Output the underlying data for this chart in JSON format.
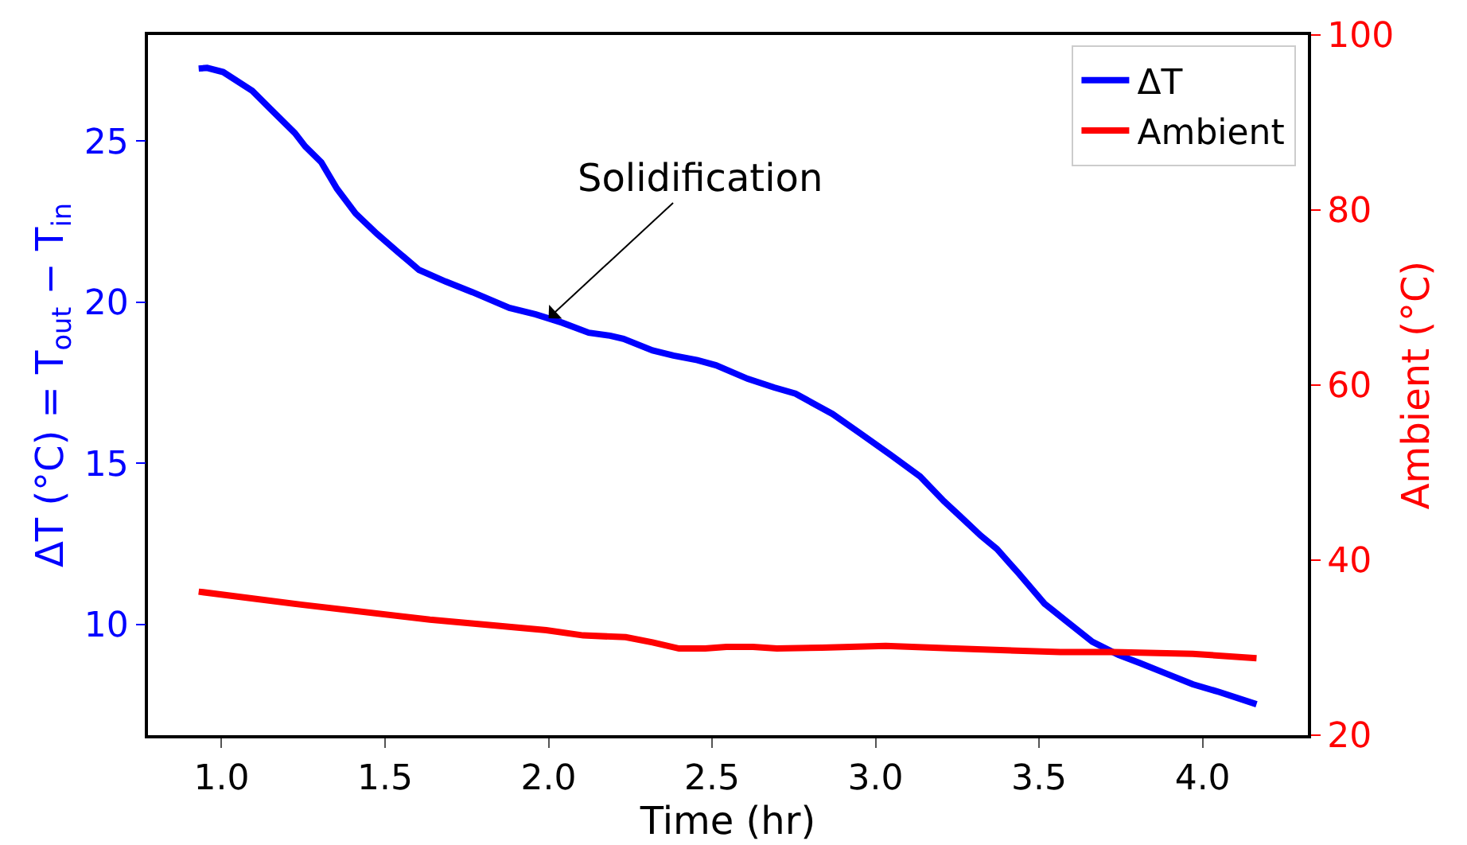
{
  "chart_data": {
    "type": "line",
    "xlabel": "Time (hr)",
    "ylabel": "ΔT (°C) = T$_{out}$ − T$_{in}$",
    "y2label": "Ambient (°C)",
    "xlim": [
      0.775,
      4.322
    ],
    "xticks": [
      {
        "value": 1,
        "label": "1.0"
      },
      1.5,
      {
        "value": 2,
        "label": "2.0"
      },
      2.5,
      {
        "value": 3,
        "label": "3.0"
      },
      3.5,
      {
        "value": 4,
        "label": "4.0"
      }
    ],
    "ylim": [
      6.56,
      28.29
    ],
    "yticks": [
      10,
      15,
      20,
      25
    ],
    "y2lim": [
      20,
      100
    ],
    "y2ticks": [
      20,
      40,
      60,
      80,
      100
    ],
    "grid": false,
    "legend": "top right",
    "line_style": "solid",
    "marker": "none",
    "annotations": [
      {
        "text": "Solidification",
        "x": 2.0,
        "y": 19.5
      }
    ],
    "series": [
      {
        "name": "ΔT",
        "color": "#0000ff",
        "x": [
          0.93,
          0.956,
          1.005,
          1.094,
          1.15,
          1.224,
          1.256,
          1.305,
          1.353,
          1.41,
          1.475,
          1.54,
          1.604,
          1.685,
          1.767,
          1.88,
          1.961,
          2.042,
          2.123,
          2.188,
          2.229,
          2.318,
          2.382,
          2.455,
          2.512,
          2.609,
          2.69,
          2.755,
          2.868,
          2.95,
          3.047,
          3.136,
          3.209,
          3.257,
          3.322,
          3.371,
          3.436,
          3.517,
          3.581,
          3.663,
          3.743,
          3.808,
          3.889,
          3.97,
          4.051,
          4.165
        ],
        "values": [
          27.25,
          27.27,
          27.14,
          26.56,
          25.99,
          25.25,
          24.83,
          24.34,
          23.52,
          22.75,
          22.12,
          21.55,
          21.0,
          20.64,
          20.31,
          19.82,
          19.62,
          19.36,
          19.05,
          18.96,
          18.86,
          18.5,
          18.34,
          18.2,
          18.04,
          17.62,
          17.35,
          17.16,
          16.53,
          15.95,
          15.25,
          14.59,
          13.82,
          13.37,
          12.75,
          12.34,
          11.6,
          10.64,
          10.12,
          9.46,
          9.05,
          8.8,
          8.47,
          8.14,
          7.9,
          7.52
        ]
      },
      {
        "name": "Ambient",
        "color": "#ff0000",
        "axis": "y2",
        "x": [
          0.93,
          1.248,
          1.637,
          1.993,
          2.106,
          2.236,
          2.318,
          2.399,
          2.479,
          2.544,
          2.625,
          2.698,
          2.836,
          3.031,
          3.241,
          3.565,
          3.727,
          3.97,
          4.165
        ],
        "values": [
          36.4,
          34.9,
          33.2,
          32.0,
          31.4,
          31.2,
          30.6,
          29.9,
          29.9,
          30.1,
          30.1,
          29.9,
          30.0,
          30.2,
          29.9,
          29.5,
          29.5,
          29.3,
          28.8
        ]
      }
    ]
  }
}
